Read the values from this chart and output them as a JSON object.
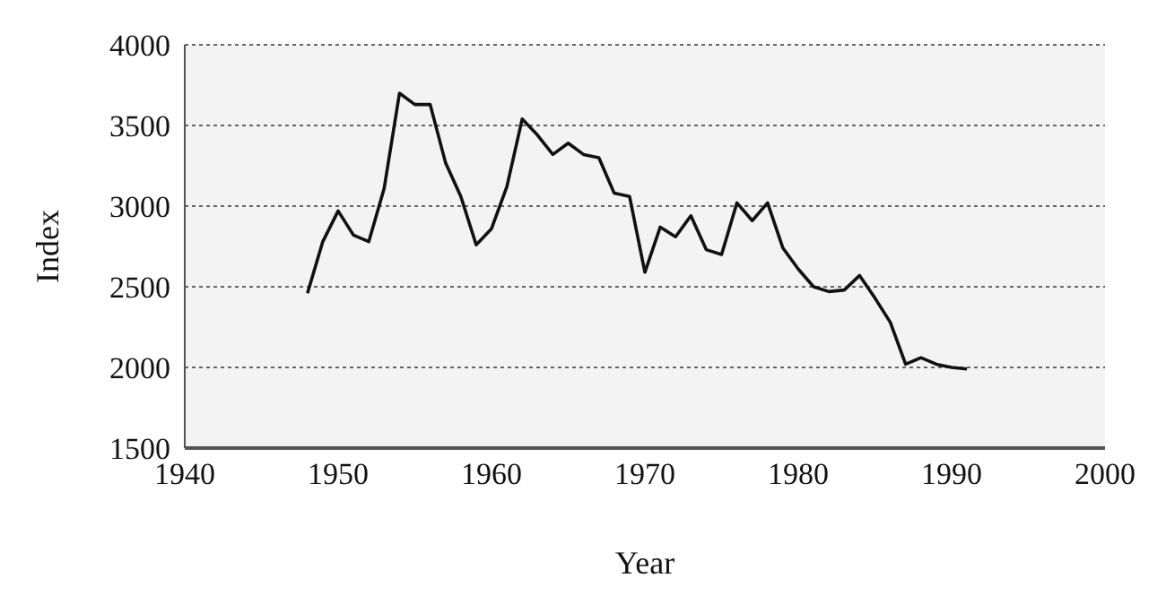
{
  "chart_data": {
    "type": "line",
    "xlabel": "Year",
    "ylabel": "Index",
    "x": [
      1948,
      1949,
      1950,
      1951,
      1952,
      1953,
      1954,
      1955,
      1956,
      1957,
      1958,
      1959,
      1960,
      1961,
      1962,
      1963,
      1964,
      1965,
      1966,
      1967,
      1968,
      1969,
      1970,
      1971,
      1972,
      1973,
      1974,
      1975,
      1976,
      1977,
      1978,
      1979,
      1980,
      1981,
      1982,
      1983,
      1984,
      1985,
      1986,
      1987,
      1988,
      1989,
      1990,
      1991
    ],
    "series": [
      {
        "color": "#111111",
        "values": [
          2460,
          2780,
          2970,
          2820,
          2780,
          3110,
          3700,
          3630,
          3630,
          3270,
          3060,
          2760,
          2860,
          3120,
          3540,
          3440,
          3320,
          3390,
          3320,
          3300,
          3080,
          3060,
          2590,
          2870,
          2810,
          2940,
          2730,
          2700,
          3020,
          2910,
          3020,
          2740,
          2610,
          2500,
          2470,
          2480,
          2570,
          2430,
          2280,
          2020,
          2060,
          2020,
          2000,
          1990
        ]
      }
    ],
    "xlim": [
      1940,
      2000
    ],
    "xticks": [
      1940,
      1950,
      1960,
      1970,
      1980,
      1990,
      2000
    ],
    "ylim": [
      1500,
      4000
    ],
    "yticks": [
      1500,
      2000,
      2500,
      3000,
      3500,
      4000
    ],
    "grid": "y",
    "line_style": "solid",
    "marker": "none"
  }
}
